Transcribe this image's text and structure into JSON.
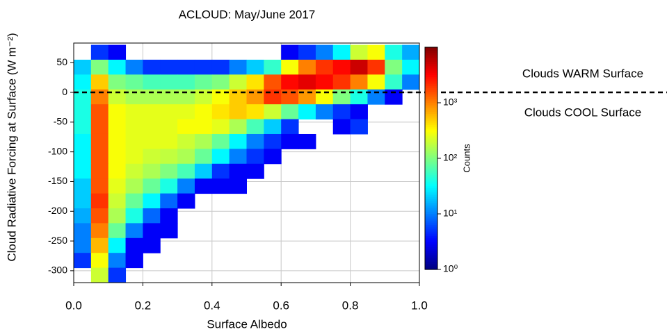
{
  "chart_data": {
    "type": "hist2d",
    "title": "ACLOUD: May/June 2017",
    "x_label": "Surface Albedo",
    "y_label": "Cloud Radiative Forcing at Surface (W m⁻²)",
    "colorbar_label": "Counts",
    "colormap": "jet",
    "color_scale": "log",
    "grid": true,
    "xlim": [
      0,
      1
    ],
    "ylim": [
      -320,
      83
    ],
    "xticks": [
      {
        "value": 0,
        "label": "0.0"
      },
      {
        "value": 0.2,
        "label": "0.2"
      },
      {
        "value": 0.4,
        "label": "0.4"
      },
      {
        "value": 0.6,
        "label": "0.6"
      },
      {
        "value": 0.8,
        "label": "0.8"
      },
      {
        "value": 1,
        "label": "1.0"
      }
    ],
    "yticks": [
      -300,
      -250,
      -200,
      -150,
      -100,
      -50,
      0,
      50
    ],
    "zlim": [
      1,
      10000
    ],
    "zticks": [
      {
        "value": 1,
        "label": "10⁰"
      },
      {
        "value": 10,
        "label": "10¹"
      },
      {
        "value": 100,
        "label": "10²"
      },
      {
        "value": 1000,
        "label": "10³"
      }
    ],
    "hline": {
      "value": 0,
      "style": "dashed",
      "color": "#000000"
    },
    "annotations": [
      "Clouds WARM Surface",
      "Clouds COOL Surface"
    ],
    "x_bins": [
      0,
      0.05,
      0.1,
      0.15,
      0.2,
      0.25,
      0.3,
      0.35,
      0.4,
      0.45,
      0.5,
      0.55,
      0.6,
      0.65,
      0.7,
      0.75,
      0.8,
      0.85,
      0.9,
      0.95,
      1
    ],
    "y_bins": [
      80,
      55,
      30,
      5,
      -20,
      -45,
      -70,
      -95,
      -120,
      -145,
      -170,
      -195,
      -220,
      -245,
      -270,
      -295,
      -320
    ],
    "counts": [
      [
        0,
        5,
        3,
        0,
        0,
        0,
        0,
        0,
        0,
        0,
        0,
        0,
        3,
        5,
        10,
        30,
        200,
        300,
        40,
        15
      ],
      [
        20,
        100,
        30,
        10,
        5,
        5,
        5,
        5,
        5,
        10,
        20,
        50,
        300,
        1000,
        2000,
        3000,
        5000,
        2000,
        100,
        30
      ],
      [
        30,
        500,
        100,
        80,
        60,
        60,
        60,
        80,
        100,
        200,
        400,
        1500,
        3000,
        4000,
        3000,
        2000,
        1000,
        300,
        50,
        10
      ],
      [
        40,
        1000,
        200,
        150,
        150,
        150,
        150,
        200,
        300,
        500,
        800,
        2000,
        1500,
        800,
        300,
        100,
        40,
        10,
        3,
        0
      ],
      [
        40,
        1500,
        300,
        250,
        250,
        250,
        250,
        300,
        400,
        500,
        400,
        200,
        80,
        30,
        10,
        5,
        3,
        0,
        0,
        0
      ],
      [
        40,
        1500,
        300,
        250,
        250,
        250,
        300,
        300,
        250,
        150,
        60,
        20,
        5,
        0,
        0,
        3,
        5,
        0,
        0,
        0
      ],
      [
        30,
        1500,
        300,
        250,
        250,
        250,
        200,
        150,
        80,
        30,
        10,
        5,
        3,
        3,
        0,
        0,
        0,
        0,
        0,
        0
      ],
      [
        30,
        1500,
        300,
        250,
        200,
        180,
        150,
        80,
        30,
        10,
        5,
        3,
        0,
        0,
        0,
        0,
        0,
        0,
        0,
        0
      ],
      [
        30,
        1500,
        300,
        200,
        150,
        100,
        60,
        20,
        5,
        3,
        3,
        0,
        0,
        0,
        0,
        0,
        0,
        0,
        0,
        0
      ],
      [
        20,
        1500,
        250,
        150,
        80,
        40,
        10,
        3,
        3,
        3,
        0,
        0,
        0,
        0,
        0,
        0,
        0,
        0,
        0,
        0
      ],
      [
        20,
        2000,
        200,
        80,
        30,
        8,
        3,
        0,
        0,
        0,
        0,
        0,
        0,
        0,
        0,
        0,
        0,
        0,
        0,
        0
      ],
      [
        15,
        1500,
        150,
        40,
        8,
        3,
        0,
        0,
        0,
        0,
        0,
        0,
        0,
        0,
        0,
        0,
        0,
        0,
        0,
        0
      ],
      [
        10,
        1000,
        80,
        10,
        3,
        3,
        0,
        0,
        0,
        0,
        0,
        0,
        0,
        0,
        0,
        0,
        0,
        0,
        0,
        0
      ],
      [
        10,
        600,
        30,
        3,
        3,
        0,
        0,
        0,
        0,
        0,
        0,
        0,
        0,
        0,
        0,
        0,
        0,
        0,
        0,
        0
      ],
      [
        5,
        300,
        10,
        3,
        0,
        0,
        0,
        0,
        0,
        0,
        0,
        0,
        0,
        0,
        0,
        0,
        0,
        0,
        0,
        0
      ],
      [
        0,
        200,
        5,
        0,
        0,
        0,
        0,
        0,
        0,
        0,
        0,
        0,
        0,
        0,
        0,
        0,
        0,
        0,
        0,
        0
      ]
    ]
  }
}
